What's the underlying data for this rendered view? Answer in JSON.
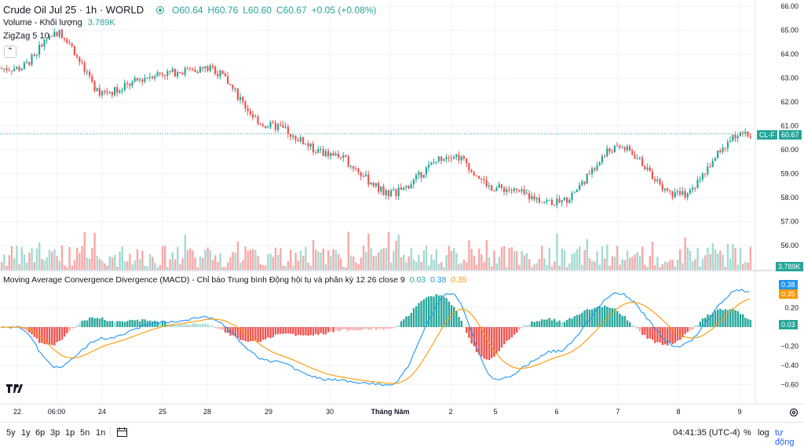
{
  "header": {
    "title": "Crude Oil Jul 25 · 1h · WORLD",
    "open": "O60.64",
    "high": "H60.76",
    "low": "L60.60",
    "close": "C60.67",
    "change": "+0.05 (+0.08%)"
  },
  "volume_legend": {
    "label": "Volume - Khối lượng",
    "value": "3.789K"
  },
  "zigzag_legend": {
    "label": "ZigZag 5 10"
  },
  "macd_legend": {
    "label": "Moving Average Convergence Divergence (MACD) - Chỉ báo Trung bình Động hội tụ và phân kỳ 12 26 close 9",
    "hist": "0.03",
    "macd": "0.38",
    "signal": "0.35"
  },
  "price_axis": [
    "66.00",
    "65.00",
    "64.00",
    "63.00",
    "62.00",
    "61.00",
    "60.00",
    "59.00",
    "58.00",
    "57.00",
    "56.00"
  ],
  "macd_axis": [
    "0.20",
    "−0.20",
    "−0.40",
    "−0.60"
  ],
  "tags": {
    "symbol": "CL-F",
    "last": "60.67",
    "volume": "3.789K",
    "macd": "0.38",
    "signal": "0.35",
    "hist": "0.03"
  },
  "time_axis": [
    {
      "label": "22",
      "x": 22
    },
    {
      "label": "06:00",
      "x": 72
    },
    {
      "label": "24",
      "x": 130
    },
    {
      "label": "25",
      "x": 207
    },
    {
      "label": "28",
      "x": 264
    },
    {
      "label": "29",
      "x": 342
    },
    {
      "label": "30",
      "x": 420
    },
    {
      "label": "Tháng Năm",
      "x": 497
    },
    {
      "label": "2",
      "x": 574
    },
    {
      "label": "5",
      "x": 631
    },
    {
      "label": "6",
      "x": 709
    },
    {
      "label": "7",
      "x": 787
    },
    {
      "label": "8",
      "x": 864
    },
    {
      "label": "9",
      "x": 942
    }
  ],
  "bottom_bar": {
    "timeframes": [
      "5y",
      "1y",
      "6p",
      "3p",
      "1p",
      "5n",
      "1n"
    ],
    "clock": "04:41:35 (UTC-4)",
    "percent": "%",
    "log": "log",
    "auto": "tự động"
  },
  "colors": {
    "up": "#26a69a",
    "down": "#ef5350",
    "macd": "#2196f3",
    "signal": "#ff9800",
    "vol_up": "#a5d9d2",
    "vol_down": "#f6a9a8"
  },
  "chart_data": {
    "type": "candlestick",
    "y_range": [
      55.5,
      66.0
    ],
    "last_price": 60.67,
    "macd_range": [
      -0.7,
      0.45
    ],
    "anchors": [
      {
        "date": "22",
        "price": 63.4,
        "macd": 0.0
      },
      {
        "date": "06:00",
        "price": 64.9,
        "macd": -0.42
      },
      {
        "date": "24",
        "price": 62.4,
        "macd": -0.12
      },
      {
        "date": "25",
        "price": 63.2,
        "macd": 0.05
      },
      {
        "date": "28",
        "price": 63.4,
        "macd": 0.1
      },
      {
        "date": "29",
        "price": 61.0,
        "macd": -0.35
      },
      {
        "date": "30",
        "price": 59.8,
        "macd": -0.55
      },
      {
        "date": "Tháng Năm",
        "price": 58.2,
        "macd": -0.6
      },
      {
        "date": "2",
        "price": 59.8,
        "macd": 0.35
      },
      {
        "date": "5",
        "price": 58.4,
        "macd": -0.55
      },
      {
        "date": "6",
        "price": 57.8,
        "macd": -0.25
      },
      {
        "date": "7",
        "price": 60.1,
        "macd": 0.35
      },
      {
        "date": "8",
        "price": 58.1,
        "macd": -0.2
      },
      {
        "date": "9",
        "price": 60.6,
        "macd": 0.38
      }
    ]
  }
}
